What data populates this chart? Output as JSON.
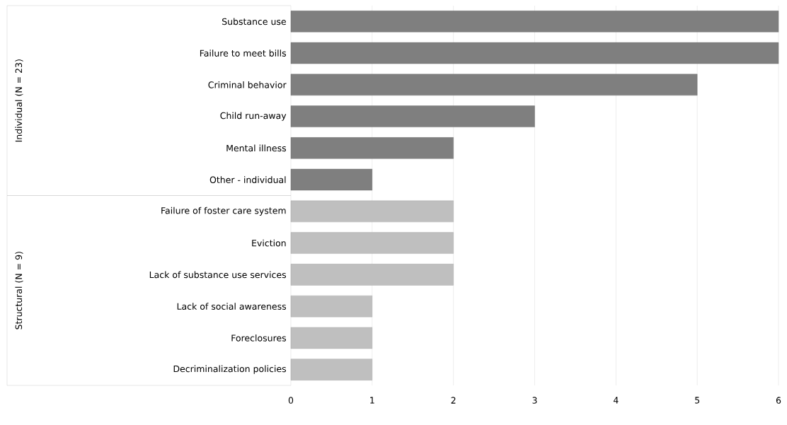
{
  "chart_data": {
    "type": "bar",
    "orientation": "horizontal",
    "categories": [
      "Substance use",
      "Failure to meet bills",
      "Criminal behavior",
      "Child run-away",
      "Mental illness",
      "Other - individual",
      "Failure of foster care system",
      "Eviction",
      "Lack of substance use services",
      "Lack of social awareness",
      "Foreclosures",
      "Decriminalization policies"
    ],
    "values": [
      6,
      6,
      5,
      3,
      2,
      1,
      2,
      2,
      2,
      1,
      1,
      1
    ],
    "colors": [
      "#7f7f7f",
      "#7f7f7f",
      "#7f7f7f",
      "#7f7f7f",
      "#7f7f7f",
      "#7f7f7f",
      "#bfbfbf",
      "#bfbfbf",
      "#bfbfbf",
      "#bfbfbf",
      "#bfbfbf",
      "#bfbfbf"
    ],
    "xlim": [
      0,
      6
    ],
    "xticks": [
      0,
      1,
      2,
      3,
      4,
      5,
      6
    ],
    "grid": "x",
    "annotations": [
      "Individual (N = 23)",
      "Structural (N = 9)"
    ]
  }
}
